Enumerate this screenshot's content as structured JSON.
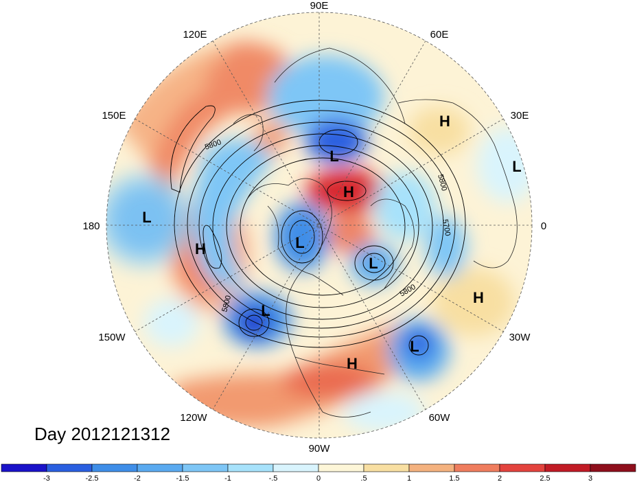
{
  "map": {
    "projection": "polar-stereographic",
    "hemisphere": "north",
    "longitude_labels": [
      "90E",
      "60E",
      "30E",
      "0",
      "30W",
      "60W",
      "90W",
      "120W",
      "150W",
      "180",
      "150E",
      "120E"
    ],
    "contour_labels": [
      "5800",
      "5800",
      "5700",
      "5800",
      "5800"
    ],
    "pressure_centers": [
      {
        "type": "H",
        "label": "H"
      },
      {
        "type": "H",
        "label": "H"
      },
      {
        "type": "H",
        "label": "H"
      },
      {
        "type": "H",
        "label": "H"
      },
      {
        "type": "H",
        "label": "H"
      },
      {
        "type": "L",
        "label": "L"
      },
      {
        "type": "L",
        "label": "L"
      },
      {
        "type": "L",
        "label": "L"
      },
      {
        "type": "L",
        "label": "L"
      },
      {
        "type": "L",
        "label": "L"
      },
      {
        "type": "L",
        "label": "L"
      },
      {
        "type": "L",
        "label": "L"
      }
    ]
  },
  "title": "Day 2012121312",
  "colorbar": {
    "ticks": [
      "-3",
      "-2.5",
      "-2",
      "-1.5",
      "-1",
      "-.5",
      "0",
      ".5",
      "1",
      "1.5",
      "2",
      "2.5",
      "3"
    ],
    "colors": [
      "#1a13c9",
      "#2a5fe0",
      "#3f8ee8",
      "#5aaaf0",
      "#7ec6f6",
      "#a7e2fb",
      "#d9f4fd",
      "#fdf6d8",
      "#f8dfa2",
      "#f4b27f",
      "#ef7d5e",
      "#e3433e",
      "#c11b25",
      "#8e0f1c"
    ]
  }
}
